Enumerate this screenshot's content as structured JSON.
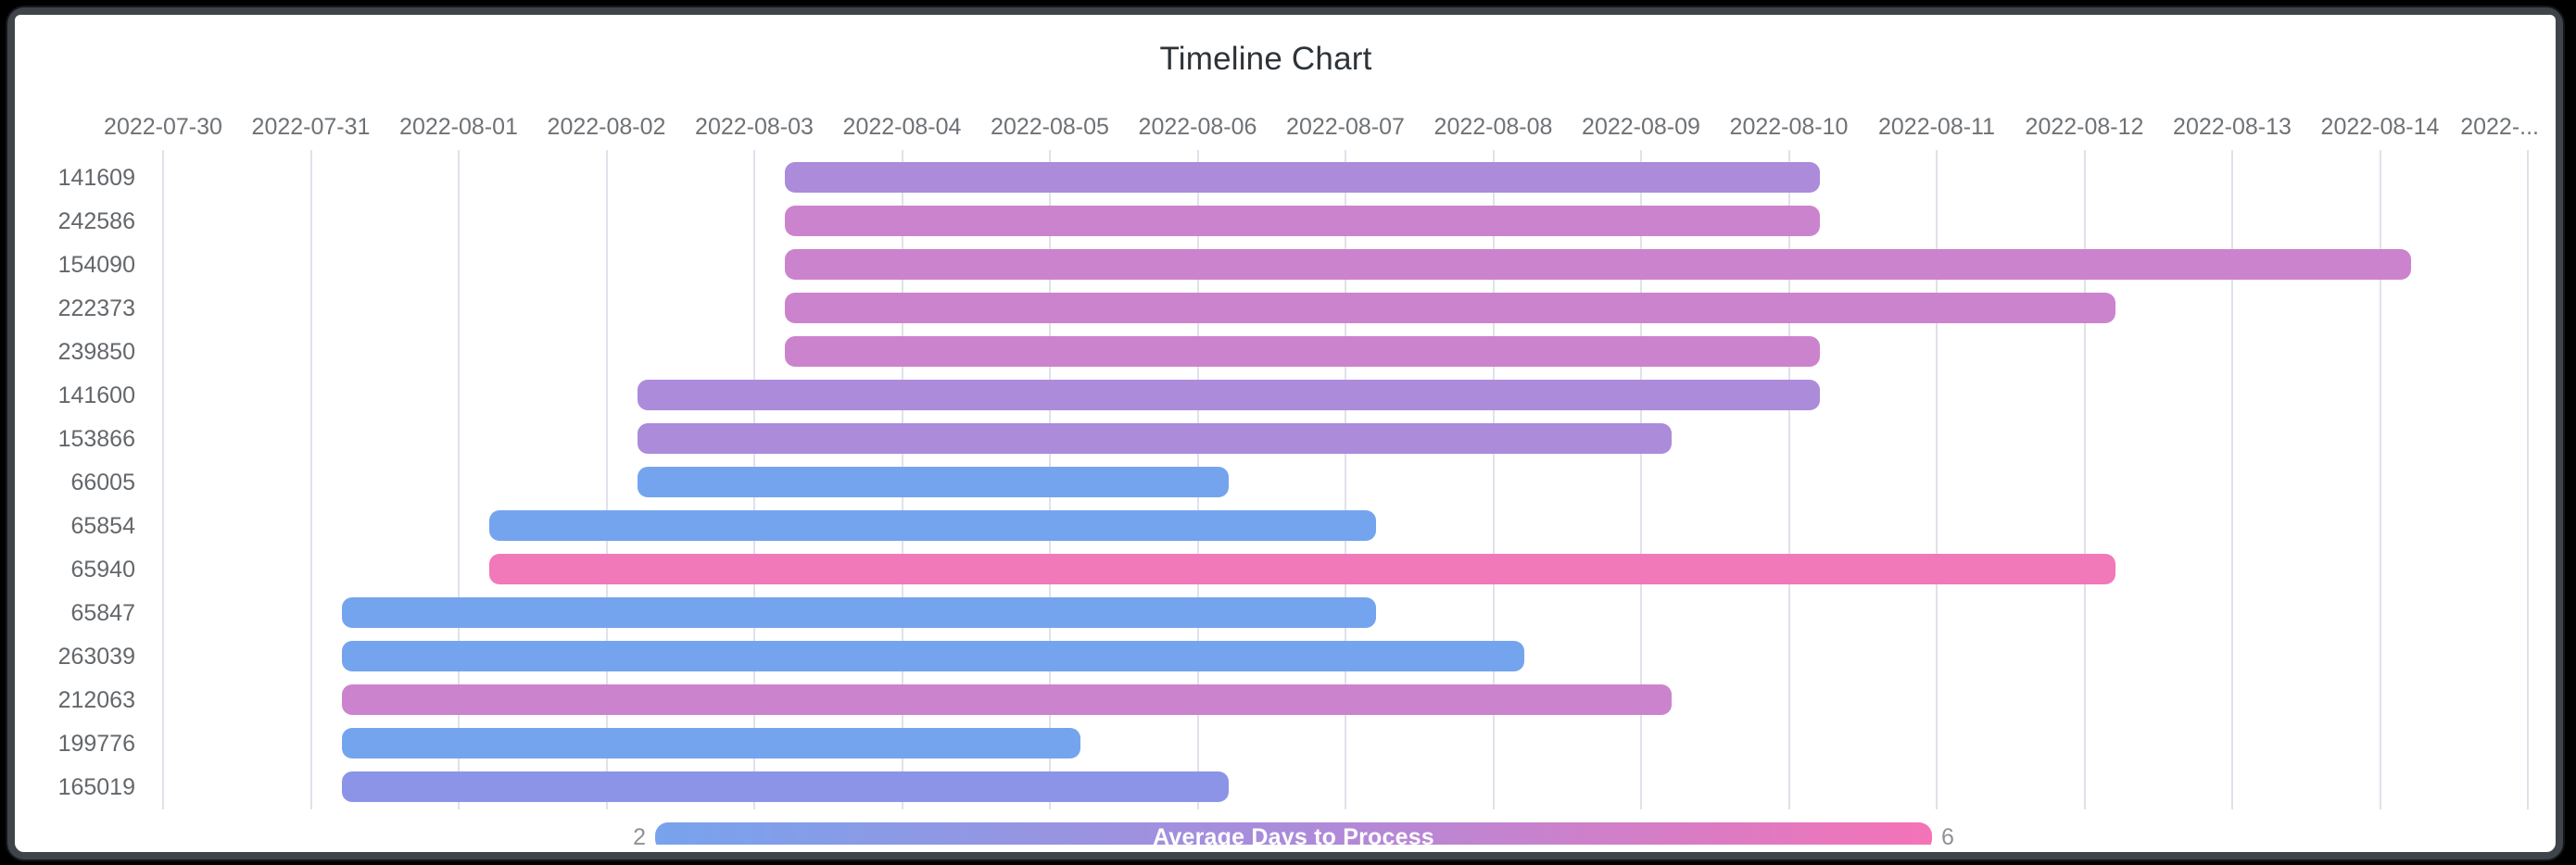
{
  "window": {
    "background": "#000000",
    "frame_color": "#3f444a",
    "card_background": "#ffffff"
  },
  "chart_data": {
    "type": "timeline",
    "title": "Timeline Chart",
    "x_axis": {
      "tick_labels": [
        "2022-07-30",
        "2022-07-31",
        "2022-08-01",
        "2022-08-02",
        "2022-08-03",
        "2022-08-04",
        "2022-08-05",
        "2022-08-06",
        "2022-08-07",
        "2022-08-08",
        "2022-08-09",
        "2022-08-10",
        "2022-08-11",
        "2022-08-12",
        "2022-08-13",
        "2022-08-14",
        "2022-..."
      ],
      "range_start": "2022-07-30",
      "range_end": "2022-08-15",
      "grid": true,
      "tick_color": "#6e7276",
      "gridline_color": "#dee2eb"
    },
    "y_axis": {
      "categories": [
        "141609",
        "242586",
        "154090",
        "222373",
        "239850",
        "141600",
        "153866",
        "66005",
        "65854",
        "65940",
        "65847",
        "263039",
        "212063",
        "199776",
        "165019"
      ],
      "tick_color": "#63676b"
    },
    "tasks": [
      {
        "id": "141609",
        "start": "2022-08-03 05:00",
        "end": "2022-08-10 05:00",
        "days": 7,
        "color": "#ab8bda",
        "avg_days_color_value": 4
      },
      {
        "id": "242586",
        "start": "2022-08-03 05:00",
        "end": "2022-08-10 05:00",
        "days": 7,
        "color": "#cc83cd",
        "avg_days_color_value": 5
      },
      {
        "id": "154090",
        "start": "2022-08-03 05:00",
        "end": "2022-08-14 05:00",
        "days": 11,
        "color": "#cc83cd",
        "avg_days_color_value": 5
      },
      {
        "id": "222373",
        "start": "2022-08-03 05:00",
        "end": "2022-08-12 05:00",
        "days": 9,
        "color": "#cc83cd",
        "avg_days_color_value": 5
      },
      {
        "id": "239850",
        "start": "2022-08-03 05:00",
        "end": "2022-08-10 05:00",
        "days": 7,
        "color": "#cc83cd",
        "avg_days_color_value": 5
      },
      {
        "id": "141600",
        "start": "2022-08-02 05:00",
        "end": "2022-08-10 05:00",
        "days": 8,
        "color": "#ab8bda",
        "avg_days_color_value": 4
      },
      {
        "id": "153866",
        "start": "2022-08-02 05:00",
        "end": "2022-08-09 05:00",
        "days": 7,
        "color": "#ab8bda",
        "avg_days_color_value": 4
      },
      {
        "id": "66005",
        "start": "2022-08-02 05:00",
        "end": "2022-08-06 05:00",
        "days": 4,
        "color": "#75a4ee",
        "avg_days_color_value": 2
      },
      {
        "id": "65854",
        "start": "2022-08-01 05:00",
        "end": "2022-08-07 05:00",
        "days": 6,
        "color": "#75a4ee",
        "avg_days_color_value": 2
      },
      {
        "id": "65940",
        "start": "2022-08-01 05:00",
        "end": "2022-08-12 05:00",
        "days": 11,
        "color": "#f178b9",
        "avg_days_color_value": 6
      },
      {
        "id": "65847",
        "start": "2022-07-31 05:00",
        "end": "2022-08-07 05:00",
        "days": 7,
        "color": "#75a4ee",
        "avg_days_color_value": 2
      },
      {
        "id": "263039",
        "start": "2022-07-31 05:00",
        "end": "2022-08-08 05:00",
        "days": 8,
        "color": "#75a4ee",
        "avg_days_color_value": 2
      },
      {
        "id": "212063",
        "start": "2022-07-31 05:00",
        "end": "2022-08-09 05:00",
        "days": 9,
        "color": "#cc83cd",
        "avg_days_color_value": 5
      },
      {
        "id": "199776",
        "start": "2022-07-31 05:00",
        "end": "2022-08-05 05:00",
        "days": 5,
        "color": "#75a4ee",
        "avg_days_color_value": 2
      },
      {
        "id": "165019",
        "start": "2022-07-31 05:00",
        "end": "2022-08-06 05:00",
        "days": 6,
        "color": "#8c94e8",
        "avg_days_color_value": 2.8
      }
    ],
    "legend": {
      "position": "bottom-center",
      "label": "Average Days to Process",
      "min_label": "2",
      "max_label": "6",
      "gradient_colors": [
        "#78a3ed",
        "#ab8bda",
        "#f573b7"
      ],
      "label_color": "#ffffff",
      "tick_color": "#8e9296"
    }
  }
}
